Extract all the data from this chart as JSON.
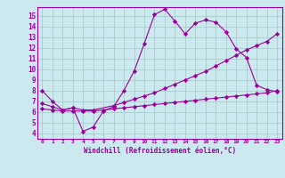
{
  "bg_color": "#cce9f0",
  "grid_color": "#aacccc",
  "line_color": "#990099",
  "xlabel": "Windchill (Refroidissement éolien,°C)",
  "xlim": [
    -0.5,
    23.5
  ],
  "ylim": [
    3.5,
    15.8
  ],
  "xticks": [
    0,
    1,
    2,
    3,
    4,
    5,
    6,
    7,
    8,
    9,
    10,
    11,
    12,
    13,
    14,
    15,
    16,
    17,
    18,
    19,
    20,
    21,
    22,
    23
  ],
  "yticks": [
    4,
    5,
    6,
    7,
    8,
    9,
    10,
    11,
    12,
    13,
    14,
    15
  ],
  "line1_x": [
    0,
    1,
    2,
    3,
    4,
    5,
    6,
    7,
    8,
    9,
    10,
    11,
    12,
    13,
    14,
    15,
    16,
    17,
    18,
    19,
    20,
    21,
    22,
    23
  ],
  "line1_y": [
    8.0,
    7.0,
    6.2,
    6.4,
    4.2,
    4.6,
    6.1,
    6.5,
    8.0,
    9.8,
    12.4,
    15.1,
    15.6,
    14.5,
    13.3,
    14.3,
    14.6,
    14.4,
    13.5,
    11.9,
    11.1,
    8.5,
    8.1,
    7.9
  ],
  "line2_x": [
    0,
    1,
    2,
    3,
    4,
    5,
    7,
    8,
    9,
    10,
    11,
    12,
    13,
    14,
    15,
    16,
    17,
    18,
    19,
    20,
    21,
    22,
    23
  ],
  "line2_y": [
    6.8,
    6.5,
    6.2,
    6.4,
    6.2,
    6.2,
    6.6,
    6.9,
    7.2,
    7.5,
    7.8,
    8.2,
    8.6,
    9.0,
    9.4,
    9.8,
    10.3,
    10.8,
    11.3,
    11.8,
    12.2,
    12.6,
    13.3
  ],
  "line3_x": [
    0,
    1,
    2,
    3,
    4,
    5,
    6,
    7,
    8,
    9,
    10,
    11,
    12,
    13,
    14,
    15,
    16,
    17,
    18,
    19,
    20,
    21,
    22,
    23
  ],
  "line3_y": [
    6.3,
    6.2,
    6.1,
    6.1,
    6.1,
    6.1,
    6.2,
    6.3,
    6.4,
    6.5,
    6.6,
    6.7,
    6.8,
    6.9,
    7.0,
    7.1,
    7.2,
    7.3,
    7.4,
    7.5,
    7.6,
    7.7,
    7.8,
    8.0
  ],
  "spine_color": "#9900aa"
}
